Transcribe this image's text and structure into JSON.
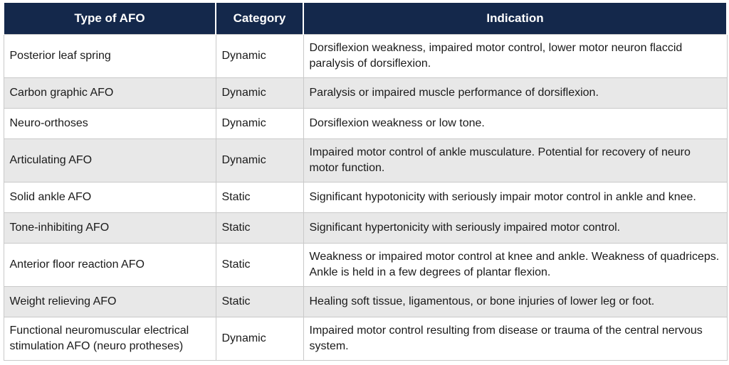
{
  "table": {
    "headers": [
      "Type of AFO",
      "Category",
      "Indication"
    ],
    "rows": [
      {
        "type": "Posterior leaf spring",
        "category": "Dynamic",
        "indication": "Dorsiflexion weakness, impaired motor control, lower motor neuron flaccid paralysis of dorsiflexion."
      },
      {
        "type": "Carbon graphic AFO",
        "category": "Dynamic",
        "indication": "Paralysis or impaired muscle performance of dorsiflexion."
      },
      {
        "type": "Neuro-orthoses",
        "category": "Dynamic",
        "indication": "Dorsiflexion weakness or low tone."
      },
      {
        "type": "Articulating AFO",
        "category": "Dynamic",
        "indication": "Impaired motor control of ankle musculature. Potential for recovery of neuro motor function."
      },
      {
        "type": "Solid ankle AFO",
        "category": "Static",
        "indication": "Significant hypotonicity with seriously impair motor control in ankle and knee."
      },
      {
        "type": "Tone-inhibiting AFO",
        "category": "Static",
        "indication": "Significant hypertonicity with seriously impaired motor control."
      },
      {
        "type": "Anterior floor reaction AFO",
        "category": "Static",
        "indication": "Weakness or impaired motor control at knee and ankle. Weakness of quadriceps. Ankle is held in a few degrees of plantar flexion."
      },
      {
        "type": "Weight relieving AFO",
        "category": "Static",
        "indication": "Healing soft tissue, ligamentous, or bone injuries of lower leg or foot."
      },
      {
        "type": "Functional neuromuscular electrical stimulation AFO (neuro protheses)",
        "category": "Dynamic",
        "indication": "Impaired motor control resulting from disease or trauma of the central nervous system."
      }
    ]
  }
}
